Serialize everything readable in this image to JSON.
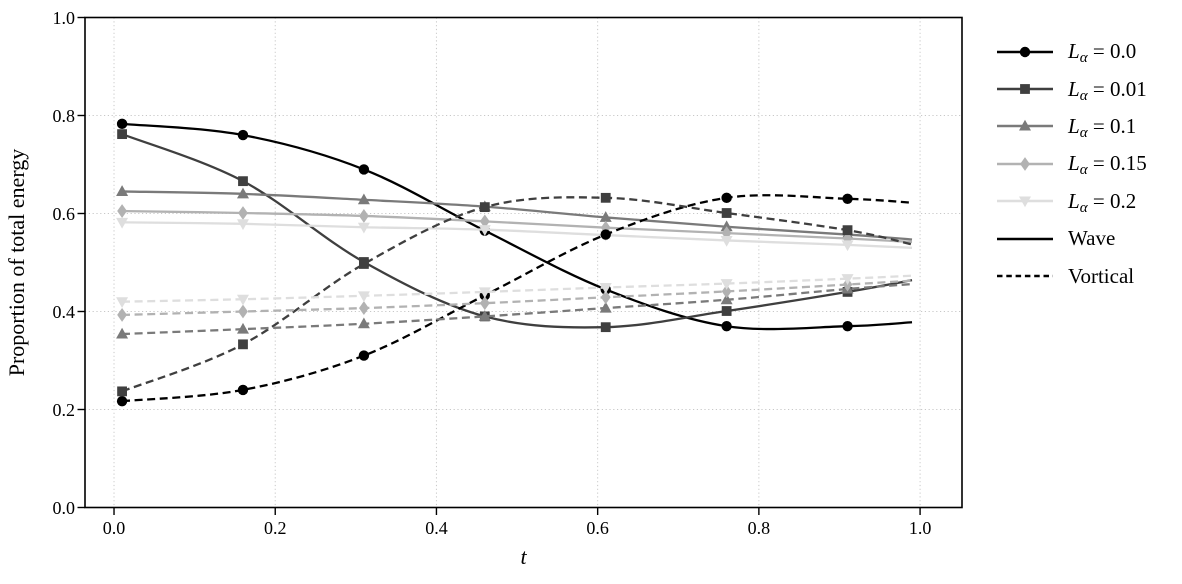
{
  "figure": {
    "background": "#ffffff"
  },
  "chart_data": {
    "type": "line",
    "title": "",
    "xlabel": "t",
    "ylabel": "Proportion of total energy",
    "xlim": [
      -0.036,
      1.052
    ],
    "ylim": [
      0.0,
      1.0
    ],
    "xticks": {
      "values": [
        0.0,
        0.2,
        0.4,
        0.6,
        0.8,
        1.0
      ],
      "labels": [
        "0.0",
        "0.2",
        "0.4",
        "0.6",
        "0.8",
        "1.0"
      ]
    },
    "yticks": {
      "values": [
        0.0,
        0.2,
        0.4,
        0.6,
        0.8,
        1.0
      ],
      "labels": [
        "0.0",
        "0.2",
        "0.4",
        "0.6",
        "0.8",
        "1.0"
      ]
    },
    "grid": {
      "show": true,
      "style": "dotted",
      "color": "#c8c8c8"
    },
    "x": [
      0.01,
      0.16,
      0.31,
      0.46,
      0.61,
      0.76,
      0.91,
      0.99
    ],
    "marker_points": 7,
    "series": [
      {
        "id": "wave-L0.0",
        "alpha": "0.0",
        "component": "Wave",
        "color": "#000000",
        "marker": "circle",
        "line": "solid",
        "values": [
          0.783,
          0.76,
          0.69,
          0.565,
          0.445,
          0.37,
          0.37,
          0.378
        ]
      },
      {
        "id": "wave-L0.01",
        "alpha": "0.01",
        "component": "Wave",
        "color": "#3f3f3f",
        "marker": "square",
        "line": "solid",
        "values": [
          0.762,
          0.666,
          0.501,
          0.39,
          0.368,
          0.401,
          0.44,
          0.464
        ]
      },
      {
        "id": "wave-L0.1",
        "alpha": "0.1",
        "component": "Wave",
        "color": "#7a7a7a",
        "marker": "triangle-up",
        "line": "solid",
        "values": [
          0.645,
          0.64,
          0.628,
          0.614,
          0.592,
          0.573,
          0.557,
          0.547
        ]
      },
      {
        "id": "wave-L0.15",
        "alpha": "0.15",
        "component": "Wave",
        "color": "#b2b2b2",
        "marker": "diamond",
        "line": "solid",
        "values": [
          0.605,
          0.601,
          0.595,
          0.584,
          0.571,
          0.56,
          0.549,
          0.542
        ]
      },
      {
        "id": "wave-L0.2",
        "alpha": "0.2",
        "component": "Wave",
        "color": "#dedede",
        "marker": "triangle-down",
        "line": "solid",
        "values": [
          0.582,
          0.579,
          0.572,
          0.567,
          0.556,
          0.545,
          0.536,
          0.53
        ]
      },
      {
        "id": "vortical-L0.0",
        "alpha": "0.0",
        "component": "Vortical",
        "color": "#000000",
        "marker": "circle",
        "line": "dashed",
        "values": [
          0.217,
          0.24,
          0.31,
          0.433,
          0.557,
          0.632,
          0.63,
          0.622
        ]
      },
      {
        "id": "vortical-L0.01",
        "alpha": "0.01",
        "component": "Vortical",
        "color": "#3f3f3f",
        "marker": "square",
        "line": "dashed",
        "values": [
          0.237,
          0.333,
          0.497,
          0.613,
          0.632,
          0.601,
          0.566,
          0.537
        ]
      },
      {
        "id": "vortical-L0.1",
        "alpha": "0.1",
        "component": "Vortical",
        "color": "#7a7a7a",
        "marker": "triangle-up",
        "line": "dashed",
        "values": [
          0.354,
          0.364,
          0.375,
          0.39,
          0.407,
          0.424,
          0.446,
          0.456
        ]
      },
      {
        "id": "vortical-L0.15",
        "alpha": "0.15",
        "component": "Vortical",
        "color": "#b2b2b2",
        "marker": "diamond",
        "line": "dashed",
        "values": [
          0.393,
          0.4,
          0.407,
          0.417,
          0.429,
          0.441,
          0.455,
          0.463
        ]
      },
      {
        "id": "vortical-L0.2",
        "alpha": "0.2",
        "component": "Vortical",
        "color": "#dedede",
        "marker": "triangle-down",
        "line": "dashed",
        "values": [
          0.42,
          0.425,
          0.432,
          0.44,
          0.449,
          0.457,
          0.467,
          0.473
        ]
      }
    ],
    "legend": {
      "position": "outside-right-top",
      "alpha_entries": [
        {
          "base": "L",
          "sub": "α",
          "rest": " = 0.0",
          "color": "#000000",
          "marker": "circle",
          "line": "solid"
        },
        {
          "base": "L",
          "sub": "α",
          "rest": " = 0.01",
          "color": "#3f3f3f",
          "marker": "square",
          "line": "solid"
        },
        {
          "base": "L",
          "sub": "α",
          "rest": " = 0.1",
          "color": "#7a7a7a",
          "marker": "triangle-up",
          "line": "solid"
        },
        {
          "base": "L",
          "sub": "α",
          "rest": " = 0.15",
          "color": "#b2b2b2",
          "marker": "diamond",
          "line": "solid"
        },
        {
          "base": "L",
          "sub": "α",
          "rest": " = 0.2",
          "color": "#dedede",
          "marker": "triangle-down",
          "line": "solid"
        }
      ],
      "style_entries": [
        {
          "label": "Wave",
          "line": "solid",
          "color": "#000000"
        },
        {
          "label": "Vortical",
          "line": "dashed",
          "color": "#000000"
        }
      ]
    }
  }
}
